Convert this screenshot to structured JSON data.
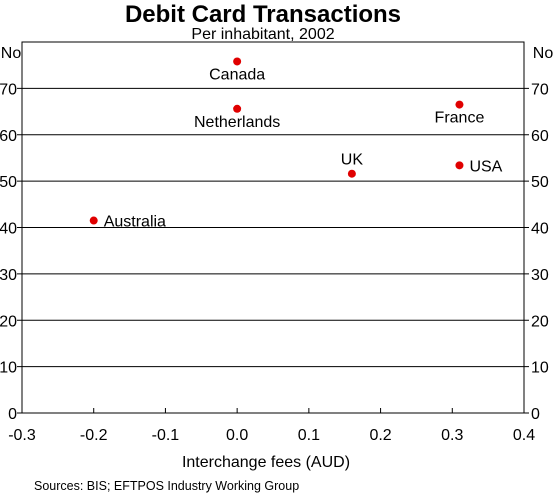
{
  "chart_data": {
    "type": "scatter",
    "title": "Debit Card Transactions",
    "subtitle": "Per inhabitant, 2002",
    "xlabel": "Interchange fees (AUD)",
    "ylabel": "No",
    "xlim": [
      -0.3,
      0.4
    ],
    "ylim": [
      0,
      80
    ],
    "xticks": [
      "-0.3",
      "-0.2",
      "-0.1",
      "0.0",
      "0.1",
      "0.2",
      "0.3",
      "0.4"
    ],
    "yticks": [
      "0",
      "10",
      "20",
      "30",
      "40",
      "50",
      "60",
      "70"
    ],
    "grid": "horizontal",
    "source": "Sources: BIS; EFTPOS Industry Working Group",
    "marker_color": "#e00000",
    "points": [
      {
        "label": "Canada",
        "x": 0.0,
        "y": 75.8,
        "label_pos": "below"
      },
      {
        "label": "Netherlands",
        "x": 0.0,
        "y": 65.6,
        "label_pos": "below"
      },
      {
        "label": "France",
        "x": 0.31,
        "y": 66.5,
        "label_pos": "below"
      },
      {
        "label": "UK",
        "x": 0.16,
        "y": 51.6,
        "label_pos": "above"
      },
      {
        "label": "USA",
        "x": 0.31,
        "y": 53.4,
        "label_pos": "right"
      },
      {
        "label": "Australia",
        "x": -0.2,
        "y": 41.5,
        "label_pos": "right"
      }
    ]
  }
}
